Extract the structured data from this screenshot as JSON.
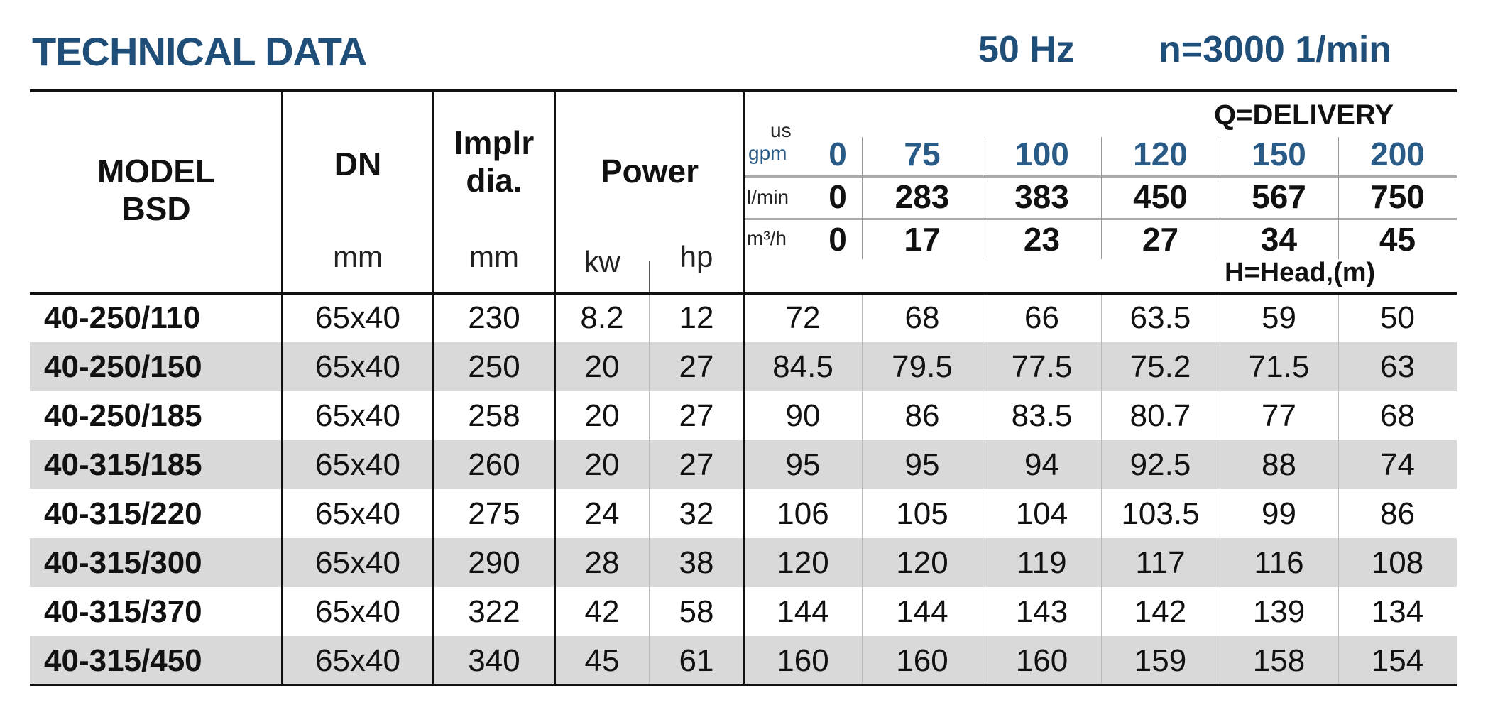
{
  "header": {
    "title": "TECHNICAL DATA",
    "frequency": "50 Hz",
    "speed": "n=3000 1/min"
  },
  "columns": {
    "model": [
      "MODEL",
      "BSD"
    ],
    "dn": "DN",
    "dn_unit": "mm",
    "impeller": [
      "Implr",
      "dia."
    ],
    "impeller_unit": "mm",
    "power": "Power",
    "power_kw": "kw",
    "power_hp": "hp",
    "delivery_label": "Q=DELIVERY",
    "head_label": "H=Head,(m)"
  },
  "flow": {
    "gpm": {
      "label_top": "us",
      "label": "gpm",
      "values": [
        "0",
        "75",
        "100",
        "120",
        "150",
        "200"
      ]
    },
    "lmin": {
      "label": "l/min",
      "values": [
        "0",
        "283",
        "383",
        "450",
        "567",
        "750"
      ]
    },
    "m3h": {
      "label": "m³/h",
      "values": [
        "0",
        "17",
        "23",
        "27",
        "34",
        "45"
      ]
    }
  },
  "colors": {
    "title": "#1f4e79",
    "gpm_values": "#2a5b86",
    "alt_row": "#d9d9d9"
  },
  "rows": [
    {
      "model": "40-250/110",
      "dn": "65x40",
      "impeller": "230",
      "kw": "8.2",
      "hp": "12",
      "head": [
        "72",
        "68",
        "66",
        "63.5",
        "59",
        "50"
      ]
    },
    {
      "model": "40-250/150",
      "dn": "65x40",
      "impeller": "250",
      "kw": "20",
      "hp": "27",
      "head": [
        "84.5",
        "79.5",
        "77.5",
        "75.2",
        "71.5",
        "63"
      ]
    },
    {
      "model": "40-250/185",
      "dn": "65x40",
      "impeller": "258",
      "kw": "20",
      "hp": "27",
      "head": [
        "90",
        "86",
        "83.5",
        "80.7",
        "77",
        "68"
      ]
    },
    {
      "model": "40-315/185",
      "dn": "65x40",
      "impeller": "260",
      "kw": "20",
      "hp": "27",
      "head": [
        "95",
        "95",
        "94",
        "92.5",
        "88",
        "74"
      ]
    },
    {
      "model": "40-315/220",
      "dn": "65x40",
      "impeller": "275",
      "kw": "24",
      "hp": "32",
      "head": [
        "106",
        "105",
        "104",
        "103.5",
        "99",
        "86"
      ]
    },
    {
      "model": "40-315/300",
      "dn": "65x40",
      "impeller": "290",
      "kw": "28",
      "hp": "38",
      "head": [
        "120",
        "120",
        "119",
        "117",
        "116",
        "108"
      ]
    },
    {
      "model": "40-315/370",
      "dn": "65x40",
      "impeller": "322",
      "kw": "42",
      "hp": "58",
      "head": [
        "144",
        "144",
        "143",
        "142",
        "139",
        "134"
      ]
    },
    {
      "model": "40-315/450",
      "dn": "65x40",
      "impeller": "340",
      "kw": "45",
      "hp": "61",
      "head": [
        "160",
        "160",
        "160",
        "159",
        "158",
        "154"
      ]
    }
  ]
}
